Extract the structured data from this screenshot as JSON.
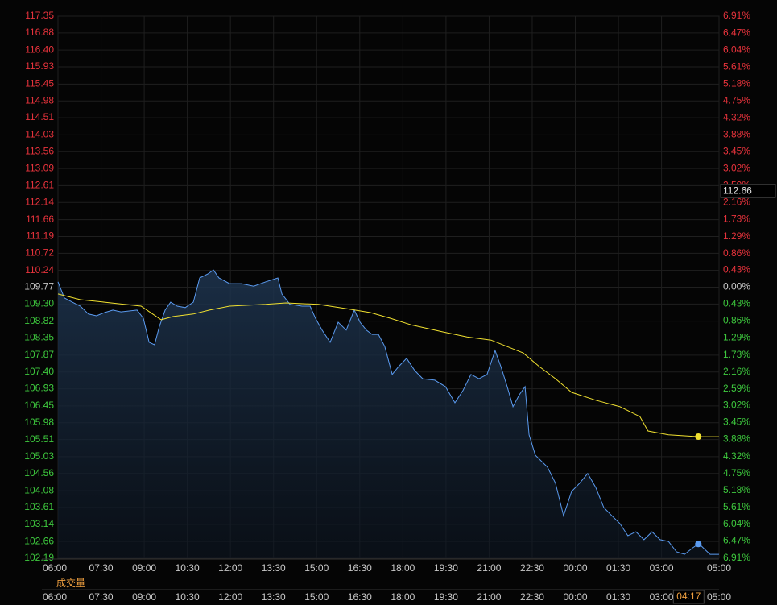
{
  "chart_data": {
    "type": "line",
    "xlim": [
      0,
      23
    ],
    "xticks": [
      {
        "value": 0,
        "label": "06:00"
      },
      {
        "value": 1.5,
        "label": "07:30"
      },
      {
        "value": 3,
        "label": "09:00"
      },
      {
        "value": 4.5,
        "label": "10:30"
      },
      {
        "value": 6,
        "label": "12:00"
      },
      {
        "value": 7.5,
        "label": "13:30"
      },
      {
        "value": 9,
        "label": "15:00"
      },
      {
        "value": 10.5,
        "label": "16:30"
      },
      {
        "value": 12,
        "label": "18:00"
      },
      {
        "value": 13.5,
        "label": "19:30"
      },
      {
        "value": 15,
        "label": "21:00"
      },
      {
        "value": 16.5,
        "label": "22:30"
      },
      {
        "value": 18,
        "label": "00:00"
      },
      {
        "value": 19.5,
        "label": "01:30"
      },
      {
        "value": 21,
        "label": "03:00"
      },
      {
        "value": 23,
        "label": "05:00"
      }
    ],
    "ylim": [
      102.19,
      117.35
    ],
    "yticks": [
      117.35,
      116.88,
      {
        "value": 116.4,
        "label": "116.40"
      },
      115.93,
      115.45,
      114.98,
      114.51,
      114.03,
      113.56,
      113.09,
      112.61,
      112.14,
      111.66,
      111.19,
      110.72,
      110.24,
      109.77,
      {
        "value": 109.3,
        "label": "109.30"
      },
      108.82,
      108.35,
      107.87,
      {
        "value": 107.4,
        "label": "107.40"
      },
      106.93,
      106.45,
      105.98,
      105.51,
      105.03,
      104.56,
      104.08,
      103.61,
      103.14,
      102.66,
      102.19
    ],
    "y2lim": [
      -6.91,
      6.91
    ],
    "y2ticks": [
      {
        "value": 6.91,
        "label": "6.91%"
      },
      {
        "value": 6.47,
        "label": "6.47%"
      },
      {
        "value": 6.04,
        "label": "6.04%"
      },
      {
        "value": 5.61,
        "label": "5.61%"
      },
      {
        "value": 5.18,
        "label": "5.18%"
      },
      {
        "value": 4.75,
        "label": "4.75%"
      },
      {
        "value": 4.32,
        "label": "4.32%"
      },
      {
        "value": 3.88,
        "label": "3.88%"
      },
      {
        "value": 3.45,
        "label": "3.45%"
      },
      {
        "value": 3.02,
        "label": "3.02%"
      },
      {
        "value": 2.59,
        "label": "2.59%"
      },
      {
        "value": 2.16,
        "label": "2.16%"
      },
      {
        "value": 1.73,
        "label": "1.73%"
      },
      {
        "value": 1.29,
        "label": "1.29%"
      },
      {
        "value": 0.86,
        "label": "0.86%"
      },
      {
        "value": 0.43,
        "label": "0.43%"
      },
      {
        "value": 0,
        "label": "0.00%"
      },
      {
        "value": -0.43,
        "label": "0.43%"
      },
      {
        "value": -0.86,
        "label": "0.86%"
      },
      {
        "value": -1.29,
        "label": "1.29%"
      },
      {
        "value": -1.73,
        "label": "1.73%"
      },
      {
        "value": -2.16,
        "label": "2.16%"
      },
      {
        "value": -2.59,
        "label": "2.59%"
      },
      {
        "value": -3.02,
        "label": "3.02%"
      },
      {
        "value": -3.45,
        "label": "3.45%"
      },
      {
        "value": -3.88,
        "label": "3.88%"
      },
      {
        "value": -4.32,
        "label": "4.32%"
      },
      {
        "value": -4.75,
        "label": "4.75%"
      },
      {
        "value": -5.18,
        "label": "5.18%"
      },
      {
        "value": -5.61,
        "label": "5.61%"
      },
      {
        "value": -6.04,
        "label": "6.04%"
      },
      {
        "value": -6.47,
        "label": "6.47%"
      },
      {
        "value": -6.91,
        "label": "6.91%"
      }
    ],
    "base_value": 109.77,
    "up_color": "#e8333c",
    "down_color": "#3ec93e",
    "flat_color": "#c8c8c8",
    "grid": true,
    "series": [
      {
        "color": "#5b9bf0",
        "area": true,
        "x": [
          0,
          0.22,
          0.5,
          0.78,
          1.06,
          1.34,
          1.62,
          1.91,
          2.19,
          2.75,
          2.97,
          3.17,
          3.36,
          3.53,
          3.73,
          3.92,
          4.15,
          4.43,
          4.71,
          4.93,
          5.21,
          5.41,
          5.6,
          5.97,
          6.39,
          6.81,
          7.23,
          7.65,
          7.79,
          8.07,
          8.49,
          8.77,
          8.96,
          9.19,
          9.47,
          9.75,
          10.03,
          10.31,
          10.51,
          10.73,
          10.93,
          11.15,
          11.37,
          11.63,
          11.85,
          12.13,
          12.41,
          12.69,
          13.11,
          13.48,
          13.81,
          14.09,
          14.37,
          14.65,
          14.93,
          15.21,
          15.41,
          15.63,
          15.83,
          16.05,
          16.25,
          16.39,
          16.61,
          17.03,
          17.31,
          17.59,
          17.87,
          18.15,
          18.43,
          18.71,
          18.99,
          19.27,
          19.55,
          19.83,
          20.11,
          20.39,
          20.67,
          20.95,
          21.24,
          21.52,
          21.8,
          22.08,
          22.3,
          22.5,
          22.69,
          23
        ],
        "values": [
          109.92,
          109.47,
          109.35,
          109.24,
          109.02,
          108.97,
          109.06,
          109.13,
          109.08,
          109.13,
          108.9,
          108.23,
          108.16,
          108.68,
          109.13,
          109.35,
          109.24,
          109.2,
          109.35,
          110.03,
          110.14,
          110.25,
          110.03,
          109.87,
          109.87,
          109.8,
          109.92,
          110.03,
          109.58,
          109.29,
          109.24,
          109.24,
          108.9,
          108.57,
          108.23,
          108.79,
          108.57,
          109.13,
          108.79,
          108.57,
          108.45,
          108.45,
          108.11,
          107.33,
          107.55,
          107.78,
          107.44,
          107.21,
          107.17,
          106.99,
          106.54,
          106.88,
          107.33,
          107.21,
          107.33,
          108.0,
          107.55,
          106.99,
          106.43,
          106.76,
          106.99,
          105.64,
          105.07,
          104.74,
          104.29,
          103.38,
          104.06,
          104.29,
          104.56,
          104.17,
          103.61,
          103.38,
          103.16,
          102.82,
          102.93,
          102.71,
          102.93,
          102.71,
          102.66,
          102.37,
          102.3,
          102.48,
          102.6,
          102.44,
          102.3,
          102.3
        ]
      },
      {
        "color": "#f0e030",
        "area": false,
        "x": [
          0,
          0.78,
          1.62,
          2.89,
          3.59,
          4.01,
          4.71,
          5.27,
          5.97,
          7.23,
          7.93,
          9.05,
          10.03,
          10.87,
          11.57,
          12.27,
          13.39,
          14.23,
          15.07,
          16.19,
          16.75,
          17.31,
          17.87,
          18.71,
          19.55,
          20.25,
          20.53,
          21.24,
          22.3,
          23
        ],
        "values": [
          109.58,
          109.42,
          109.35,
          109.24,
          108.86,
          108.95,
          109.02,
          109.13,
          109.24,
          109.29,
          109.33,
          109.29,
          109.17,
          109.06,
          108.9,
          108.72,
          108.52,
          108.38,
          108.29,
          107.93,
          107.55,
          107.21,
          106.83,
          106.61,
          106.43,
          106.15,
          105.75,
          105.64,
          105.59,
          105.59
        ]
      }
    ],
    "crosshair": {
      "x": {
        "value": 22.28,
        "label": "04:17"
      },
      "y": 112.66
    },
    "volume_label": "成交量"
  }
}
